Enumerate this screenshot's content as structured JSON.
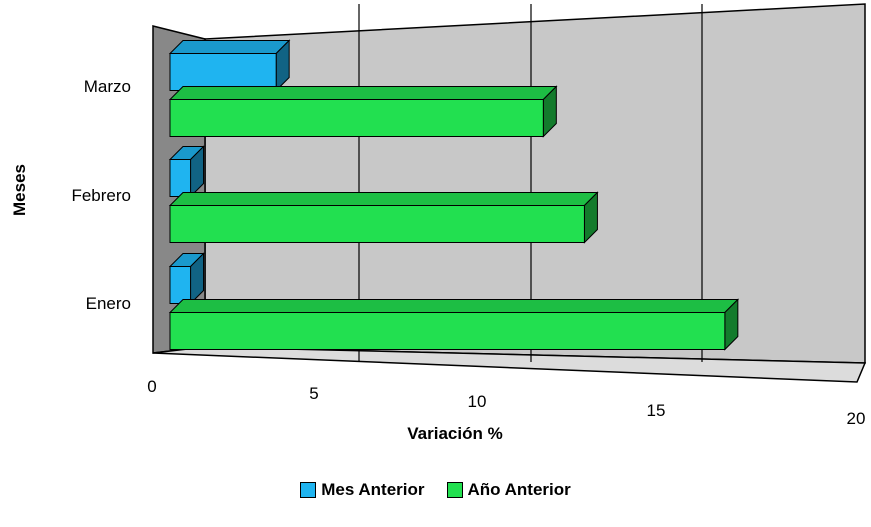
{
  "chart_data": {
    "type": "bar",
    "orientation": "horizontal",
    "three_d": true,
    "categories": [
      "Enero",
      "Febrero",
      "Marzo"
    ],
    "series": [
      {
        "name": "Mes Anterior",
        "values": [
          0.6,
          0.6,
          3.1
        ],
        "color": "#1fb4f0"
      },
      {
        "name": "Año Anterior",
        "values": [
          16.2,
          12.1,
          10.9
        ],
        "color": "#22e050"
      }
    ],
    "xlabel": "Variación %",
    "ylabel": "Meses",
    "xlim": [
      0,
      20
    ],
    "x_ticks": [
      "0",
      "5",
      "10",
      "15",
      "20"
    ],
    "grid": true,
    "legend_position": "bottom"
  }
}
